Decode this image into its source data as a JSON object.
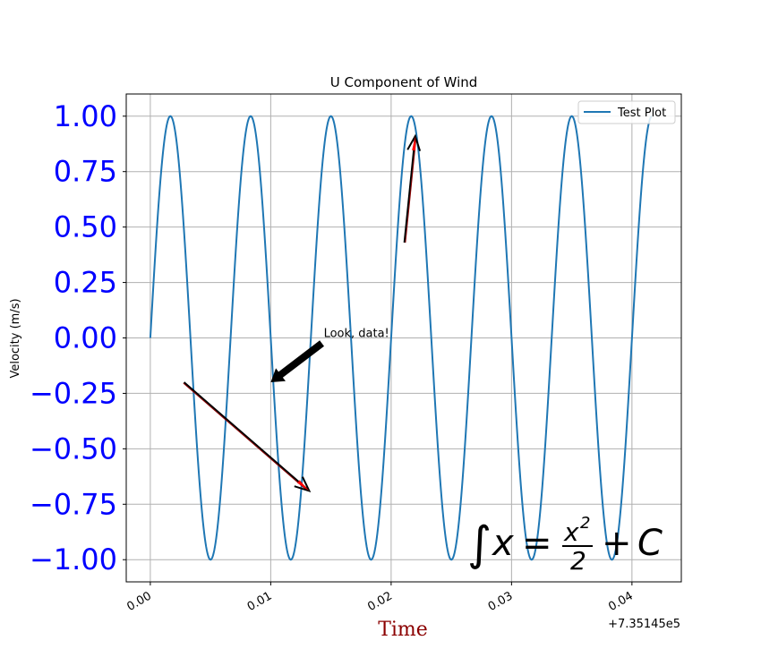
{
  "chart_data": {
    "type": "line",
    "title": "U Component of Wind",
    "xlabel": "Time",
    "ylabel": "Velocity (m/s)",
    "x_offset_label": "+7.35145e5",
    "xlim": [
      -0.002,
      0.0441
    ],
    "ylim": [
      -1.1,
      1.1
    ],
    "x_ticks": [
      0.0,
      0.01,
      0.02,
      0.03,
      0.04
    ],
    "x_tick_labels": [
      "0.00",
      "0.01",
      "0.02",
      "0.03",
      "0.04"
    ],
    "y_ticks": [
      1.0,
      0.75,
      0.5,
      0.25,
      0.0,
      -0.25,
      -0.5,
      -0.75,
      -1.0
    ],
    "y_tick_labels": [
      "1.00",
      "0.75",
      "0.50",
      "0.25",
      "0.00",
      "−0.25",
      "−0.50",
      "−0.75",
      "−1.00"
    ],
    "grid": true,
    "legend_position": "top-right",
    "series": [
      {
        "name": "Test Plot",
        "color": "#1f77b4",
        "function": "sin",
        "amplitude": 1.0,
        "period": 0.006667,
        "x_start": 0.0,
        "x_end": 0.04167
      }
    ],
    "annotations": [
      {
        "text": "Look, data!",
        "text_at": [
          0.0144,
          0.0
        ],
        "points_to": [
          0.01,
          -0.2
        ],
        "style": "wide-black-arrow"
      },
      {
        "text": "",
        "from": [
          0.0028,
          -0.2
        ],
        "to": [
          0.0132,
          -0.69
        ],
        "style": "thin-black-arrow-red-head"
      },
      {
        "text": "",
        "from": [
          0.0211,
          0.43
        ],
        "to": [
          0.022,
          0.91
        ],
        "style": "thin-black-arrow-red-head"
      }
    ],
    "math_text": "∫x = x²/2 + C",
    "colors": {
      "ytick": "#0000ff",
      "xlabel": "#8b0000",
      "line": "#1f77b4",
      "grid": "#b0b0b0"
    }
  }
}
